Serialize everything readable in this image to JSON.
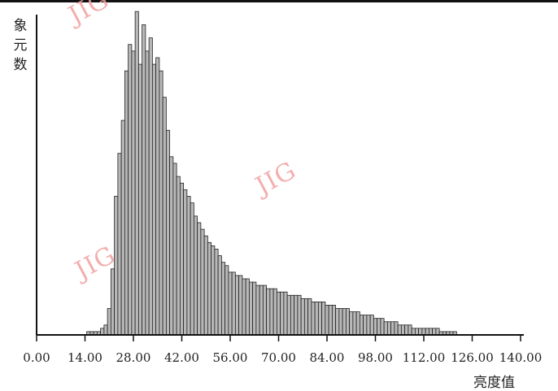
{
  "chart_data": {
    "type": "bar",
    "title": "",
    "ylabel": "象元数",
    "xlabel": "亮度值",
    "xlim": [
      0,
      140
    ],
    "ylim": [
      0,
      100
    ],
    "x_ticks": [
      "0.00",
      "14.00",
      "28.00",
      "42.00",
      "56.00",
      "70.00",
      "84.00",
      "98.00",
      "112.00",
      "126.00",
      "140.00"
    ],
    "x": [
      15,
      16,
      17,
      18,
      19,
      20,
      21,
      22,
      23,
      24,
      25,
      26,
      27,
      28,
      29,
      30,
      31,
      32,
      33,
      34,
      35,
      36,
      37,
      38,
      39,
      40,
      41,
      42,
      43,
      44,
      45,
      46,
      47,
      48,
      49,
      50,
      51,
      52,
      53,
      54,
      55,
      56,
      57,
      58,
      59,
      60,
      61,
      62,
      63,
      64,
      65,
      66,
      67,
      68,
      69,
      70,
      71,
      72,
      73,
      74,
      75,
      76,
      77,
      78,
      79,
      80,
      81,
      82,
      83,
      84,
      85,
      86,
      87,
      88,
      89,
      90,
      91,
      92,
      93,
      94,
      95,
      96,
      97,
      98,
      99,
      100,
      101,
      102,
      103,
      104,
      105,
      106,
      107,
      108,
      109,
      110,
      111,
      112,
      113,
      114,
      115,
      116,
      117,
      118,
      119,
      120,
      121
    ],
    "values": [
      1,
      1,
      1,
      1,
      2,
      3,
      8,
      20,
      42,
      55,
      65,
      80,
      88,
      86,
      98,
      82,
      94,
      86,
      90,
      82,
      84,
      80,
      72,
      62,
      54,
      52,
      48,
      46,
      44,
      42,
      40,
      36,
      34,
      32,
      30,
      28,
      27,
      26,
      24,
      22,
      21,
      19,
      19,
      18,
      18,
      17,
      17,
      16,
      16,
      15,
      15,
      15,
      14,
      14,
      14,
      13,
      13,
      13,
      12,
      12,
      12,
      12,
      11,
      11,
      11,
      10,
      10,
      10,
      10,
      9,
      9,
      9,
      8,
      8,
      8,
      8,
      7,
      7,
      7,
      6,
      6,
      6,
      6,
      5,
      5,
      5,
      4,
      4,
      4,
      4,
      3,
      3,
      3,
      3,
      2,
      2,
      2,
      2,
      2,
      2,
      2,
      2,
      1,
      1,
      1,
      1,
      1
    ]
  },
  "watermark": "JIG"
}
